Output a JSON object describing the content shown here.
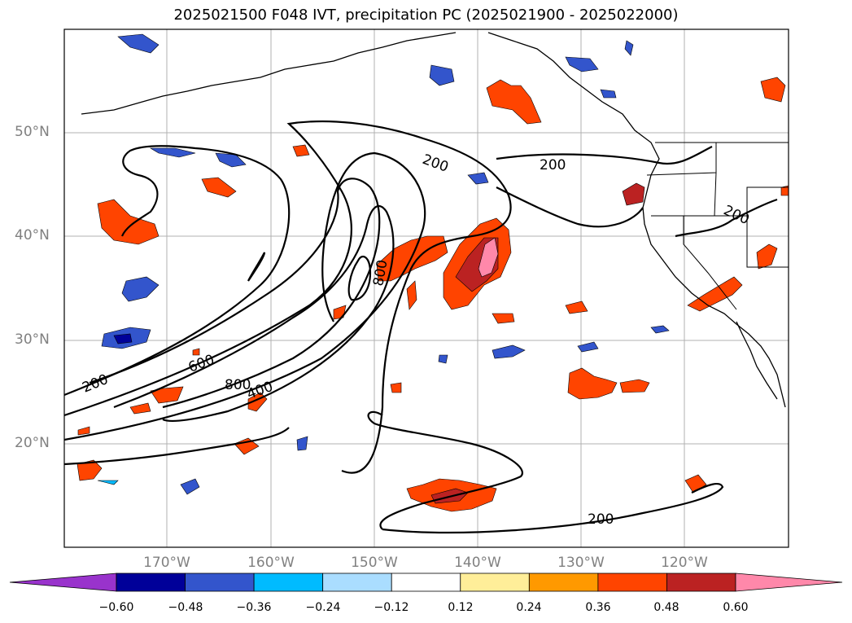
{
  "title": "2025021500 F048 IVT, precipitation PC (2025021900 - 2025022000)",
  "lat_labels": [
    "50°N",
    "40°N",
    "30°N",
    "20°N"
  ],
  "lon_labels": [
    "170°W",
    "160°W",
    "150°W",
    "140°W",
    "130°W",
    "120°W"
  ],
  "contour_labels": [
    "200",
    "200",
    "200",
    "200",
    "200",
    "400",
    "600",
    "800",
    "800"
  ],
  "colorbar": {
    "ticks": [
      "−0.60",
      "−0.48",
      "−0.36",
      "−0.24",
      "−0.12",
      "0.12",
      "0.24",
      "0.36",
      "0.48",
      "0.60"
    ],
    "colors": [
      "#9933cc",
      "#000099",
      "#3355cc",
      "#00bbff",
      "#aaddff",
      "#ffffff",
      "#ffee99",
      "#ff9900",
      "#ff4400",
      "#bb2222",
      "#ff88aa"
    ]
  }
}
